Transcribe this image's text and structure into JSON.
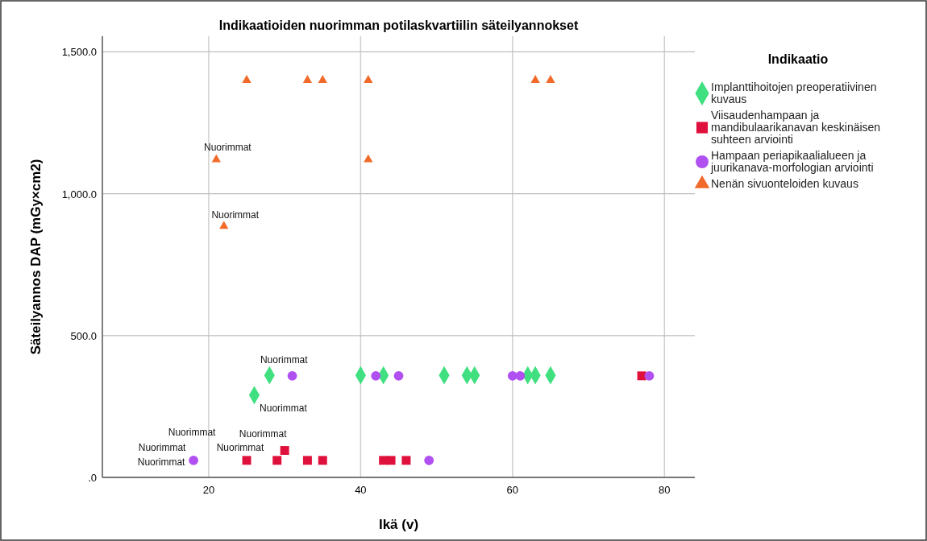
{
  "chart_data": {
    "type": "scatter",
    "title": "Indikaatioiden nuorimman potilaskvartiilin säteilyannokset",
    "xlabel": "Ikä (v)",
    "ylabel": "Säteilyannos DAP (mGy×cm2)",
    "legend_title": "Indikaatio",
    "legend": "right",
    "grid": true,
    "xlim": [
      6,
      84
    ],
    "xticks": [
      20,
      40,
      60,
      80
    ],
    "ylim": [
      0,
      1555
    ],
    "yticks": [
      {
        "value": 0,
        "label": ".0"
      },
      {
        "value": 500,
        "label": "500.0"
      },
      {
        "value": 1000,
        "label": "1,000.0"
      },
      {
        "value": 1500,
        "label": "1,500.0"
      }
    ],
    "series": [
      {
        "name": "Implanttihoitojen preoperatiivinen kuvaus",
        "color": "#40e080",
        "marker": "diamond",
        "x": [
          28,
          26,
          40,
          43,
          51,
          54,
          55,
          62,
          63,
          65
        ],
        "values": [
          360,
          290,
          360,
          360,
          360,
          360,
          360,
          360,
          360,
          360
        ]
      },
      {
        "name": "Viisaudenhampaan ja mandibulaarikanavan keskinäisen suhteen arviointi",
        "color": "#e0103c",
        "marker": "square",
        "x": [
          25,
          29,
          30,
          33,
          35,
          43,
          44,
          46,
          77
        ],
        "values": [
          60,
          60,
          95,
          60,
          60,
          60,
          60,
          60,
          358
        ]
      },
      {
        "name": "Hampaan periapikaalialueen ja juurikanava-morfologian arviointi",
        "color": "#b050f0",
        "marker": "circle",
        "x": [
          18,
          31,
          42,
          45,
          49,
          60,
          61,
          78
        ],
        "values": [
          60,
          358,
          358,
          358,
          60,
          358,
          358,
          358
        ]
      },
      {
        "name": "Nenän sivuonteloiden kuvaus",
        "color": "#f26a2a",
        "marker": "triangle",
        "x": [
          25,
          33,
          35,
          41,
          63,
          65,
          21,
          41,
          22
        ],
        "values": [
          1400,
          1400,
          1400,
          1400,
          1400,
          1400,
          1120,
          1120,
          885
        ]
      }
    ],
    "annotations": [
      {
        "text": "Nuorimmat",
        "x": 28,
        "y": 360
      },
      {
        "text": "Nuorimmat",
        "x": 26,
        "y": 290
      },
      {
        "text": "Nuorimmat",
        "x": 18,
        "y": 60
      },
      {
        "text": "Nuorimmat",
        "x": 18,
        "y": 60
      },
      {
        "text": "Nuorimmat",
        "x": 18,
        "y": 60
      },
      {
        "text": "Nuorimmat",
        "x": 25,
        "y": 60
      },
      {
        "text": "Nuorimmat",
        "x": 30,
        "y": 95
      },
      {
        "text": "Nuorimmat",
        "x": 21,
        "y": 1120
      },
      {
        "text": "Nuorimmat",
        "x": 22,
        "y": 885
      }
    ]
  }
}
